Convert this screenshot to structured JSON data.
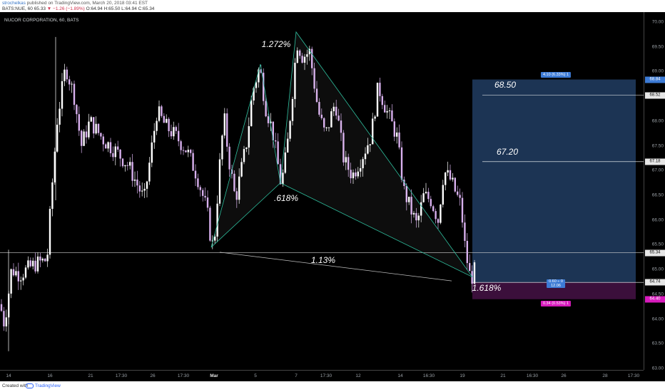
{
  "header": {
    "publisher_user": "strochelkas",
    "publisher_suffix": " published on TradingView.com, March 20, 2018 03:41 EST",
    "symbol_prefix": "BATS:NUE, 60",
    "last": "65.33",
    "change": "▼ −1.26 (−1.89%)",
    "ohlc": "O:64.94 H:65.50 L:64.94 C:65.34"
  },
  "chart": {
    "title": "NUCOR CORPORATION, 60, BATS",
    "price_ticks": [
      "70.00",
      "69.50",
      "69.00",
      "68.50",
      "68.00",
      "67.50",
      "67.00",
      "66.50",
      "66.00",
      "65.50",
      "65.00",
      "64.50",
      "64.00",
      "63.50",
      "63.00"
    ],
    "time_ticks": [
      "14",
      "16",
      "21",
      "17:30",
      "26",
      "17:30",
      "Mar",
      "5",
      "7",
      "17:30",
      "12",
      "14",
      "16:30",
      "19",
      "21",
      "16:30",
      "26",
      "28",
      "17:30"
    ],
    "price_tags": [
      {
        "label": "68.84",
        "price": 68.84,
        "bg": "#3d7bd6",
        "fg": "#ffffff"
      },
      {
        "label": "68.52",
        "price": 68.52,
        "bg": "#e6e6e6",
        "fg": "#111111"
      },
      {
        "label": "67.18",
        "price": 67.18,
        "bg": "#e6e6e6",
        "fg": "#111111"
      },
      {
        "label": "65.34",
        "price": 65.34,
        "bg": "#e6e6e6",
        "fg": "#111111"
      },
      {
        "label": "64.74",
        "price": 64.74,
        "bg": "#e6e6e6",
        "fg": "#111111"
      },
      {
        "label": "64.40",
        "price": 64.4,
        "bg": "#d81bbd",
        "fg": "#ffffff"
      }
    ],
    "pattern_labels": {
      "x_to_b": "1.272%",
      "ab_ret": ".618%",
      "xd_line": "1.13%",
      "d_ext": "1.618%"
    },
    "target_labels": {
      "t1": "68.50",
      "t2": "67.20"
    },
    "position_badges": {
      "target": "4.10 (6.33%) 1",
      "entry": "0.60 ÷ 0\n12.06",
      "stop": "0.34 (0.53%) 1"
    },
    "colors": {
      "background": "#000000",
      "candle_up": "#ffffff",
      "candle_down": "#d8b0ee",
      "pattern_line": "#2ebf9e",
      "target_zone": "#1d3758",
      "stop_zone": "#3b0f3b",
      "target_badge": "#3d7bd6",
      "stop_badge": "#d81bbd"
    }
  },
  "footer": {
    "created_with": "Created with",
    "brand": "TradingView"
  }
}
